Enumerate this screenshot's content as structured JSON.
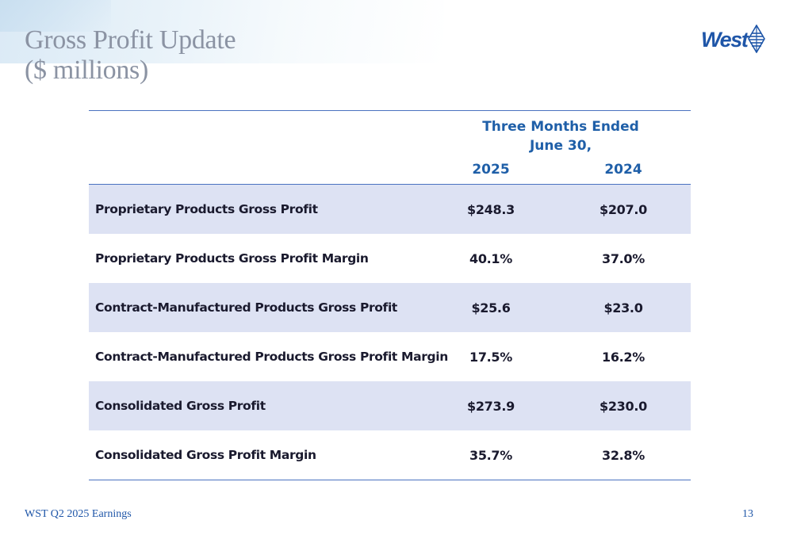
{
  "slide": {
    "title_line1": "Gross Profit Update",
    "title_line2": "($ millions)",
    "logo_text": "West",
    "footer_left": "WST Q2 2025 Earnings",
    "page_number": "13"
  },
  "table": {
    "period_header_line1": "Three Months Ended",
    "period_header_line2": "June 30,",
    "years": [
      "2025",
      "2024"
    ],
    "rows": [
      {
        "label": "Proprietary Products Gross Profit",
        "values": [
          "$248.3",
          "$207.0"
        ]
      },
      {
        "label": "Proprietary Products Gross Profit Margin",
        "values": [
          "40.1%",
          "37.0%"
        ]
      },
      {
        "label": "Contract-Manufactured Products Gross Profit",
        "values": [
          "$25.6",
          "$23.0"
        ]
      },
      {
        "label": "Contract-Manufactured Products Gross Profit Margin",
        "values": [
          "17.5%",
          "16.2%"
        ]
      },
      {
        "label": "Consolidated Gross Profit",
        "values": [
          "$273.9",
          "$230.0"
        ]
      },
      {
        "label": "Consolidated Gross Profit Margin",
        "values": [
          "35.7%",
          "32.8%"
        ]
      }
    ]
  },
  "colors": {
    "accent": "#1f5fa8",
    "row_shade": "#dde2f3",
    "rule": "#4a72c0",
    "title": "#8b93a3"
  }
}
